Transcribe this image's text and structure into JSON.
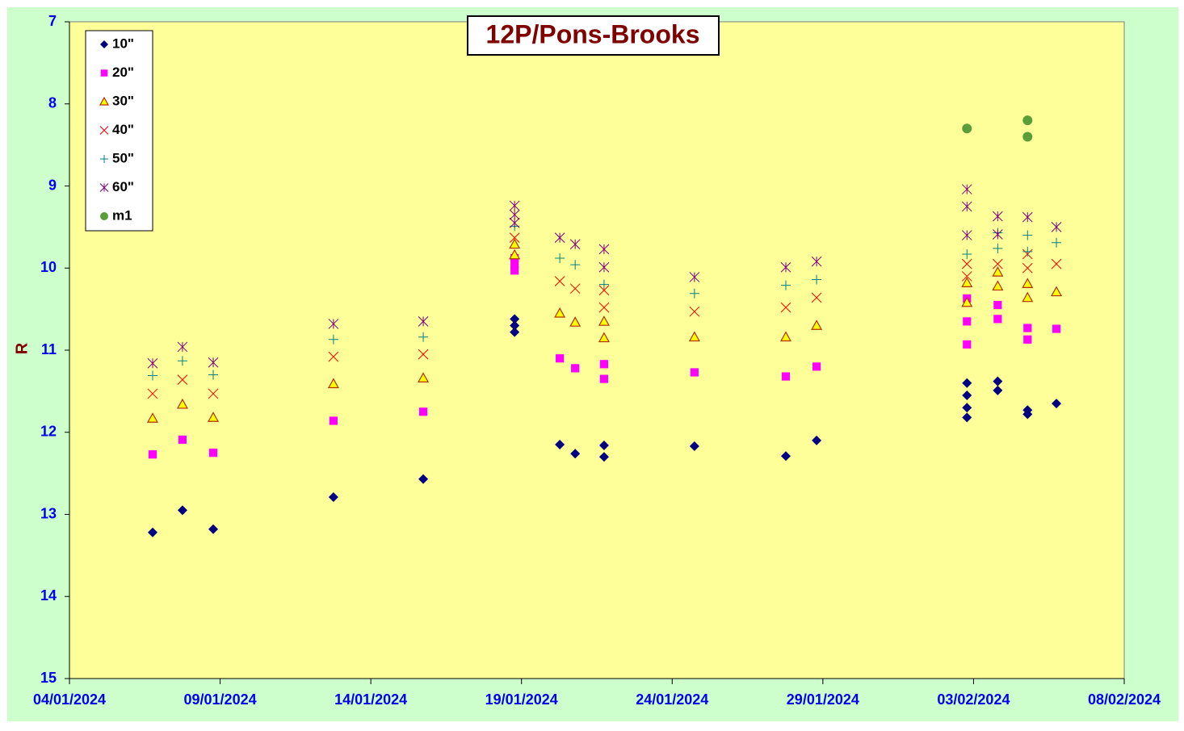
{
  "chart_data": {
    "type": "scatter",
    "title": "12P/Pons-Brooks",
    "y_label": "R",
    "xlim": [
      "2024-01-04",
      "2024-02-08"
    ],
    "xticks": [
      {
        "value": "2024-01-04",
        "label": "04/01/2024"
      },
      {
        "value": "2024-01-09",
        "label": "09/01/2024"
      },
      {
        "value": "2024-01-14",
        "label": "14/01/2024"
      },
      {
        "value": "2024-01-19",
        "label": "19/01/2024"
      },
      {
        "value": "2024-01-24",
        "label": "24/01/2024"
      },
      {
        "value": "2024-01-29",
        "label": "29/01/2024"
      },
      {
        "value": "2024-02-03",
        "label": "03/02/2024"
      },
      {
        "value": "2024-02-08",
        "label": "08/02/2024"
      }
    ],
    "ylim": [
      7,
      15
    ],
    "y_reversed": true,
    "yticks": [
      7,
      8,
      9,
      10,
      11,
      12,
      13,
      14,
      15
    ],
    "grid": false,
    "legend": "upper left",
    "series": [
      {
        "name": "10\"",
        "color": "#000080",
        "marker": "diamond",
        "x": [
          "2024-01-06T18:15",
          "2024-01-07T18:00",
          "2024-01-08T18:30",
          "2024-01-12T18:15",
          "2024-01-15T17:45",
          "2024-01-18T18:30",
          "2024-01-18T18:30",
          "2024-01-18T18:30",
          "2024-01-20T06:30",
          "2024-01-20T18:45",
          "2024-01-21T17:45",
          "2024-01-21T17:45",
          "2024-01-24T17:45",
          "2024-01-27T18:30",
          "2024-01-28T19:00",
          "2024-02-02T18:45",
          "2024-02-02T18:45",
          "2024-02-02T18:45",
          "2024-02-02T18:45",
          "2024-02-03T19:15",
          "2024-02-03T19:15",
          "2024-02-04T19:00",
          "2024-02-04T19:00",
          "2024-02-05T18:00"
        ],
        "values": [
          13.22,
          12.95,
          13.18,
          12.79,
          12.57,
          10.62,
          10.7,
          10.78,
          12.15,
          12.26,
          12.16,
          12.3,
          12.17,
          12.29,
          12.1,
          11.4,
          11.55,
          11.7,
          11.82,
          11.38,
          11.49,
          11.73,
          11.78,
          11.65
        ]
      },
      {
        "name": "20\"",
        "color": "#ff00ff",
        "marker": "square",
        "x": [
          "2024-01-06T18:15",
          "2024-01-07T18:00",
          "2024-01-08T18:30",
          "2024-01-12T18:15",
          "2024-01-15T17:45",
          "2024-01-18T18:30",
          "2024-01-18T18:30",
          "2024-01-18T18:30",
          "2024-01-20T06:30",
          "2024-01-20T18:45",
          "2024-01-21T17:45",
          "2024-01-21T17:45",
          "2024-01-24T17:45",
          "2024-01-27T18:30",
          "2024-01-28T19:00",
          "2024-02-02T18:45",
          "2024-02-02T18:45",
          "2024-02-02T18:45",
          "2024-02-03T19:15",
          "2024-02-03T19:15",
          "2024-02-04T19:00",
          "2024-02-04T19:00",
          "2024-02-05T18:00"
        ],
        "values": [
          12.27,
          12.09,
          12.25,
          11.86,
          11.75,
          9.88,
          9.95,
          10.03,
          11.1,
          11.22,
          11.17,
          11.35,
          11.27,
          11.32,
          11.2,
          10.37,
          10.65,
          10.93,
          10.45,
          10.62,
          10.73,
          10.87,
          10.74
        ]
      },
      {
        "name": "30\"",
        "color": "#ffff00",
        "marker": "triangle",
        "x": [
          "2024-01-06T18:15",
          "2024-01-07T18:00",
          "2024-01-08T18:30",
          "2024-01-12T18:15",
          "2024-01-15T17:45",
          "2024-01-18T18:30",
          "2024-01-18T18:30",
          "2024-01-20T06:30",
          "2024-01-20T18:45",
          "2024-01-21T17:45",
          "2024-01-21T17:45",
          "2024-01-24T17:45",
          "2024-01-27T18:30",
          "2024-01-28T19:00",
          "2024-02-02T18:45",
          "2024-02-02T18:45",
          "2024-02-03T19:15",
          "2024-02-03T19:15",
          "2024-02-04T19:00",
          "2024-02-04T19:00",
          "2024-02-05T18:00"
        ],
        "values": [
          11.83,
          11.66,
          11.82,
          11.41,
          11.34,
          9.71,
          9.84,
          10.55,
          10.66,
          10.65,
          10.85,
          10.84,
          10.84,
          10.7,
          10.18,
          10.42,
          10.05,
          10.22,
          10.19,
          10.36,
          10.29
        ]
      },
      {
        "name": "40\"",
        "color": "#ff0000",
        "marker": "x",
        "x": [
          "2024-01-06T18:15",
          "2024-01-07T18:00",
          "2024-01-08T18:30",
          "2024-01-12T18:15",
          "2024-01-15T17:45",
          "2024-01-18T18:30",
          "2024-01-20T06:30",
          "2024-01-20T18:45",
          "2024-01-21T17:45",
          "2024-01-21T17:45",
          "2024-01-24T17:45",
          "2024-01-27T18:30",
          "2024-01-28T19:00",
          "2024-02-02T18:45",
          "2024-02-02T18:45",
          "2024-02-03T19:15",
          "2024-02-04T19:00",
          "2024-02-04T19:00",
          "2024-02-05T18:00"
        ],
        "values": [
          11.53,
          11.36,
          11.53,
          11.08,
          11.05,
          9.63,
          10.16,
          10.25,
          10.27,
          10.48,
          10.53,
          10.48,
          10.36,
          9.95,
          10.1,
          9.95,
          10.0,
          9.83,
          9.95
        ]
      },
      {
        "name": "50\"",
        "color": "#008080",
        "marker": "plus",
        "x": [
          "2024-01-06T18:15",
          "2024-01-07T18:00",
          "2024-01-08T18:30",
          "2024-01-12T18:15",
          "2024-01-15T17:45",
          "2024-01-18T18:30",
          "2024-01-20T06:30",
          "2024-01-20T18:45",
          "2024-01-21T17:45",
          "2024-01-24T17:45",
          "2024-01-27T18:30",
          "2024-01-28T19:00",
          "2024-02-02T18:45",
          "2024-02-03T19:15",
          "2024-02-03T19:15",
          "2024-02-04T19:00",
          "2024-02-04T19:00",
          "2024-02-05T18:00"
        ],
        "values": [
          11.31,
          11.13,
          11.3,
          10.87,
          10.84,
          9.49,
          9.88,
          9.96,
          10.2,
          10.31,
          10.21,
          10.14,
          9.83,
          9.57,
          9.76,
          9.8,
          9.6,
          9.69
        ]
      },
      {
        "name": "60\"",
        "color": "#800080",
        "marker": "asterisk",
        "x": [
          "2024-01-06T18:15",
          "2024-01-07T18:00",
          "2024-01-08T18:30",
          "2024-01-12T18:15",
          "2024-01-15T17:45",
          "2024-01-18T18:30",
          "2024-01-18T18:30",
          "2024-01-18T18:30",
          "2024-01-20T06:30",
          "2024-01-20T18:45",
          "2024-01-21T17:45",
          "2024-01-21T17:45",
          "2024-01-24T17:45",
          "2024-01-27T18:30",
          "2024-01-28T19:00",
          "2024-02-02T18:45",
          "2024-02-02T18:45",
          "2024-02-02T18:45",
          "2024-02-03T19:15",
          "2024-02-03T19:15",
          "2024-02-04T19:00",
          "2024-02-05T18:00"
        ],
        "values": [
          11.16,
          10.96,
          11.15,
          10.68,
          10.65,
          9.24,
          9.35,
          9.45,
          9.63,
          9.71,
          9.77,
          9.99,
          10.11,
          9.99,
          9.92,
          9.04,
          9.25,
          9.6,
          9.37,
          9.59,
          9.38,
          9.5
        ]
      },
      {
        "name": "m1",
        "color": "#5a9e3a",
        "marker": "circle",
        "x": [
          "2024-02-02T18:45",
          "2024-02-04T19:00",
          "2024-02-04T19:00"
        ],
        "values": [
          8.3,
          8.2,
          8.4
        ]
      }
    ]
  }
}
